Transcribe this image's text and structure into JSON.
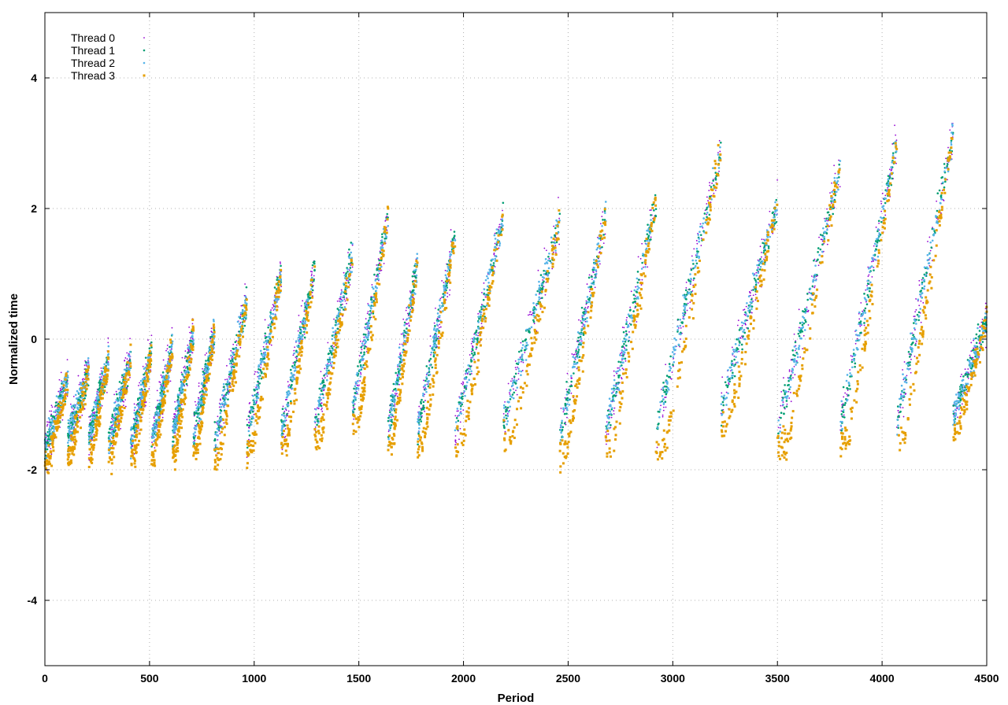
{
  "chart_data": {
    "type": "scatter",
    "title": "",
    "xlabel": "Period",
    "ylabel": "Normalized time",
    "xlim": [
      0,
      4500
    ],
    "ylim": [
      -5,
      5
    ],
    "xticks": [
      0,
      500,
      1000,
      1500,
      2000,
      2500,
      3000,
      3500,
      4000,
      4500
    ],
    "yticks": [
      -4,
      -2,
      0,
      2,
      4
    ],
    "grid": true,
    "legend_position": "top-left",
    "sawtooth_cycles": [
      {
        "start": 0,
        "end": 110,
        "low": -1.7,
        "high": -0.6
      },
      {
        "start": 110,
        "end": 210,
        "low": -1.5,
        "high": -0.5
      },
      {
        "start": 210,
        "end": 305,
        "low": -1.5,
        "high": -0.3
      },
      {
        "start": 305,
        "end": 410,
        "low": -1.6,
        "high": -0.3
      },
      {
        "start": 410,
        "end": 510,
        "low": -1.6,
        "high": -0.2
      },
      {
        "start": 510,
        "end": 610,
        "low": -1.6,
        "high": -0.1
      },
      {
        "start": 610,
        "end": 710,
        "low": -1.5,
        "high": 0.1
      },
      {
        "start": 710,
        "end": 810,
        "low": -1.5,
        "high": 0.1
      },
      {
        "start": 810,
        "end": 965,
        "low": -1.6,
        "high": 0.6
      },
      {
        "start": 965,
        "end": 1130,
        "low": -1.5,
        "high": 1.0
      },
      {
        "start": 1130,
        "end": 1290,
        "low": -1.4,
        "high": 1.1
      },
      {
        "start": 1290,
        "end": 1470,
        "low": -1.3,
        "high": 1.3
      },
      {
        "start": 1470,
        "end": 1640,
        "low": -1.1,
        "high": 1.9
      },
      {
        "start": 1640,
        "end": 1780,
        "low": -1.4,
        "high": 1.1
      },
      {
        "start": 1780,
        "end": 1960,
        "low": -1.4,
        "high": 1.6
      },
      {
        "start": 1960,
        "end": 2190,
        "low": -1.4,
        "high": 1.9
      },
      {
        "start": 2190,
        "end": 2460,
        "low": -1.3,
        "high": 1.8
      },
      {
        "start": 2460,
        "end": 2680,
        "low": -1.5,
        "high": 1.9
      },
      {
        "start": 2680,
        "end": 2920,
        "low": -1.4,
        "high": 2.1
      },
      {
        "start": 2920,
        "end": 3230,
        "low": -1.4,
        "high": 2.9
      },
      {
        "start": 3230,
        "end": 3500,
        "low": -1.1,
        "high": 2.1
      },
      {
        "start": 3500,
        "end": 3800,
        "low": -1.4,
        "high": 2.6
      },
      {
        "start": 3800,
        "end": 4070,
        "low": -1.3,
        "high": 3.0
      },
      {
        "start": 4070,
        "end": 4340,
        "low": -1.3,
        "high": 3.2
      },
      {
        "start": 4340,
        "end": 4500,
        "low": -1.2,
        "high": 0.3
      }
    ],
    "series": [
      {
        "name": "Thread 0",
        "color": "#9400d3",
        "marker": "small-dot",
        "samples_per_cycle": 90
      },
      {
        "name": "Thread 1",
        "color": "#009e73",
        "marker": "dot",
        "samples_per_cycle": 90
      },
      {
        "name": "Thread 2",
        "color": "#56b4e9",
        "marker": "dot",
        "samples_per_cycle": 90
      },
      {
        "name": "Thread 3",
        "color": "#e69f00",
        "marker": "square",
        "samples_per_cycle": 90
      }
    ]
  }
}
